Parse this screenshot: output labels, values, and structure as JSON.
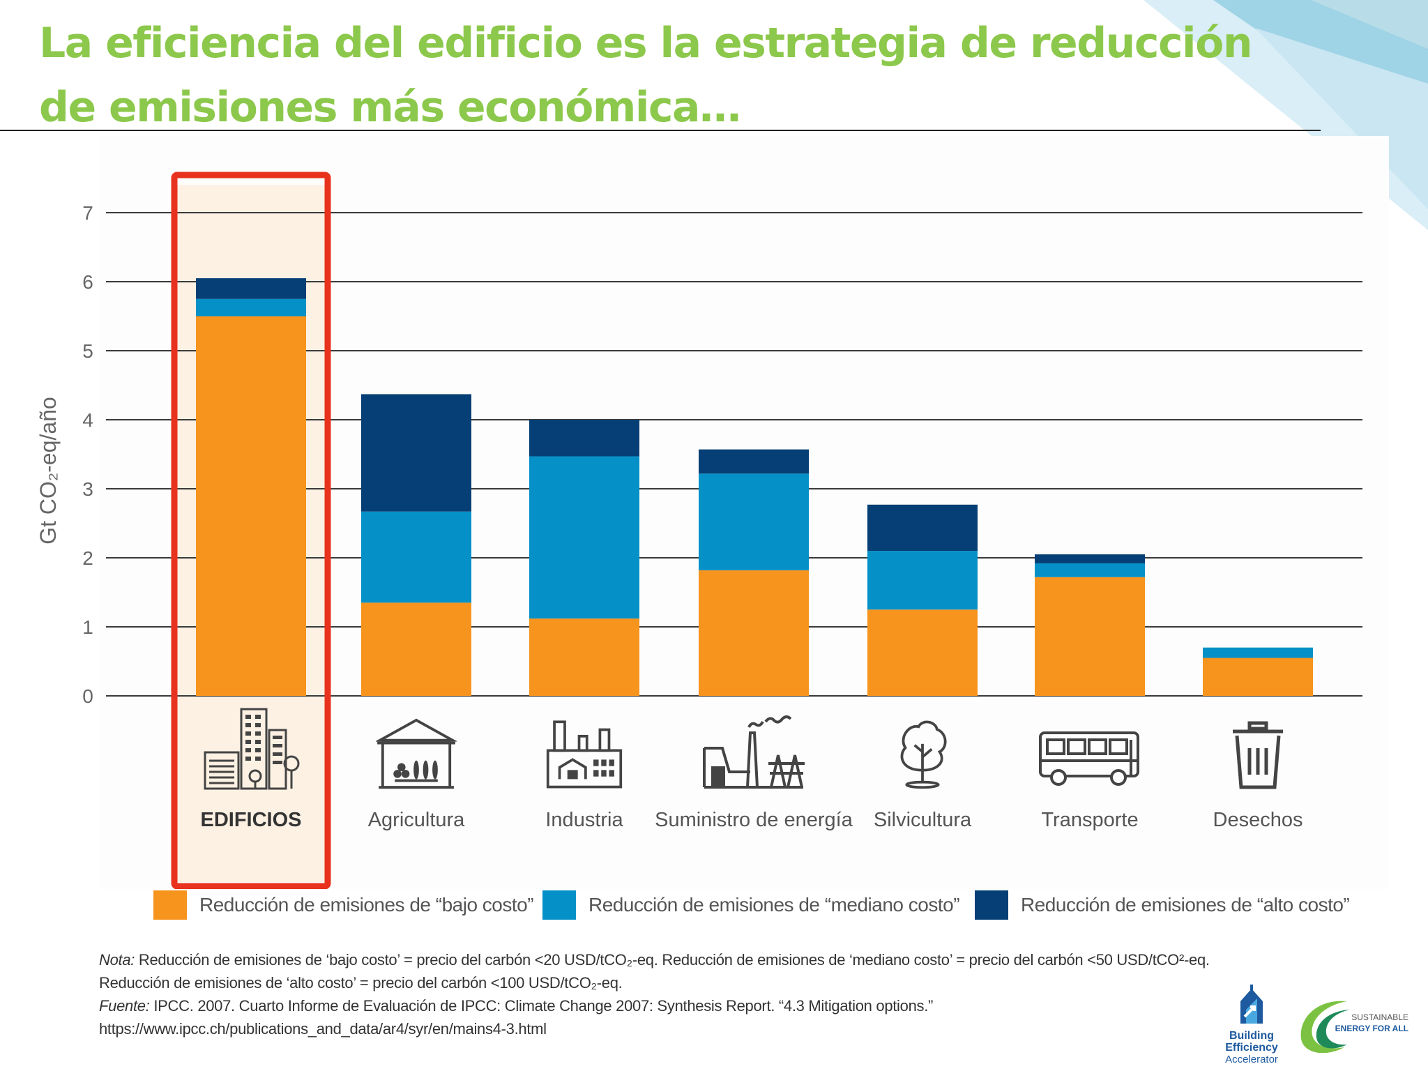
{
  "title": "La eficiencia del edificio es la estrategia de reducción de emisiones más económica…",
  "chart_data": {
    "type": "bar",
    "stacked": true,
    "ylabel": "Gt CO₂-eq/año",
    "ylim": [
      0,
      7
    ],
    "yticks": [
      0,
      1,
      2,
      3,
      4,
      5,
      6,
      7
    ],
    "grid": true,
    "categories": [
      "EDIFICIOS",
      "Agricultura",
      "Industria",
      "Suministro de energía",
      "Silvicultura",
      "Transporte",
      "Desechos"
    ],
    "category_icons": [
      "buildings-icon",
      "barn-icon",
      "factory-icon",
      "power-plant-icon",
      "tree-icon",
      "bus-icon",
      "trash-can-icon"
    ],
    "highlighted_category": "EDIFICIOS",
    "series": [
      {
        "name": "Reducción de emisiones de “bajo costo”",
        "color": "#f7941d",
        "values": [
          5.5,
          1.35,
          1.12,
          1.82,
          1.25,
          1.72,
          0.55
        ]
      },
      {
        "name": "Reducción de emisiones de “mediano costo”",
        "color": "#0591c8",
        "values": [
          0.25,
          1.32,
          2.35,
          1.4,
          0.85,
          0.2,
          0.15
        ]
      },
      {
        "name": "Reducción de emisiones de “alto costo”",
        "color": "#063f75",
        "values": [
          0.3,
          1.7,
          0.53,
          0.35,
          0.67,
          0.13,
          0.0
        ]
      }
    ],
    "legend_position": "bottom",
    "colors": {
      "highlight_box": "#e8321e",
      "highlight_fill": "#fdf1e3",
      "grid": "#3a3a3a",
      "axis_text": "#666666"
    }
  },
  "notes": {
    "nota_label": "Nota:",
    "nota_text": " Reducción de emisiones de ‘bajo costo’ = precio del carbón <20 USD/tCO₂-eq. Reducción de emisiones de ‘mediano costo’ = precio del carbón <50 USD/tCO²-eq.",
    "nota_line2": "Reducción de emisiones de ‘alto costo’ = precio del carbón <100 USD/tCO₂-eq.",
    "fuente_label": "Fuente:",
    "fuente_text": " IPCC. 2007. Cuarto Informe de Evaluación de IPCC: Climate Change 2007: Synthesis Report. “4.3 Mitigation options.”",
    "url": "https://www.ipcc.ch/publications_and_data/ar4/syr/en/mains4-3.html"
  },
  "logos": {
    "bea_line1": "Building",
    "bea_line2": "Efficiency",
    "bea_line3": "Accelerator",
    "se4all_line1": "SUSTAINABLE",
    "se4all_line2": "ENERGY FOR ALL"
  }
}
